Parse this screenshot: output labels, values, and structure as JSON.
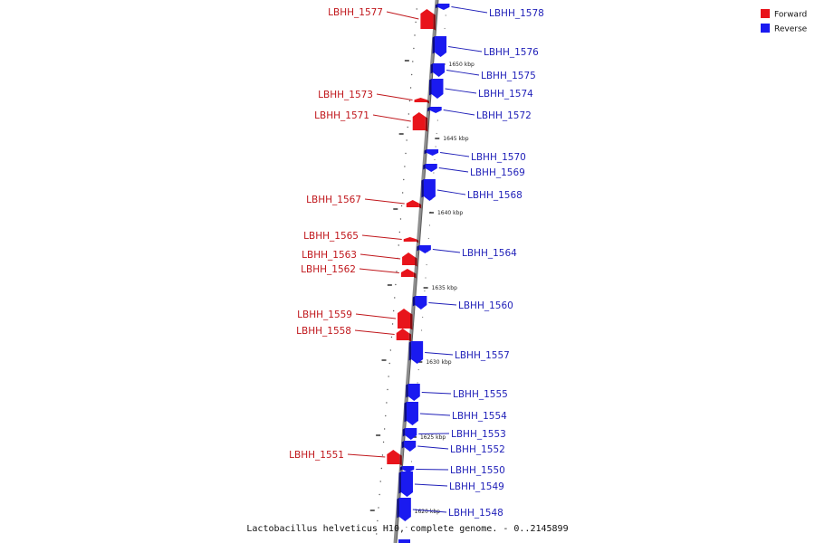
{
  "caption": "Lactobacillus helveticus H10, complete genome. - 0..2145899",
  "legend": [
    {
      "label": "Forward",
      "color": "#e8141b"
    },
    {
      "label": "Reverse",
      "color": "#1a1af0"
    }
  ],
  "colors": {
    "forward_label": "#c0171c",
    "reverse_label": "#1f1fb8",
    "backbone": "#8e8e8e"
  },
  "ticks": [
    {
      "label": "1650 kbp"
    },
    {
      "label": "1645 kbp"
    },
    {
      "label": "1640 kbp"
    },
    {
      "label": "1635 kbp"
    },
    {
      "label": "1630 kbp"
    },
    {
      "label": "1625 kbp"
    },
    {
      "label": "1620 kbp"
    }
  ],
  "genes": [
    {
      "label": "LBHH_1578",
      "strand": "reverse"
    },
    {
      "label": "LBHH_1577",
      "strand": "forward"
    },
    {
      "label": "LBHH_1576",
      "strand": "reverse"
    },
    {
      "label": "LBHH_1575",
      "strand": "reverse"
    },
    {
      "label": "LBHH_1574",
      "strand": "reverse"
    },
    {
      "label": "LBHH_1573",
      "strand": "forward"
    },
    {
      "label": "LBHH_1572",
      "strand": "reverse"
    },
    {
      "label": "LBHH_1571",
      "strand": "forward"
    },
    {
      "label": "LBHH_1570",
      "strand": "reverse"
    },
    {
      "label": "LBHH_1569",
      "strand": "reverse"
    },
    {
      "label": "LBHH_1568",
      "strand": "reverse"
    },
    {
      "label": "LBHH_1567",
      "strand": "forward"
    },
    {
      "label": "LBHH_1565",
      "strand": "forward"
    },
    {
      "label": "LBHH_1564",
      "strand": "reverse"
    },
    {
      "label": "LBHH_1563",
      "strand": "forward"
    },
    {
      "label": "LBHH_1562",
      "strand": "forward"
    },
    {
      "label": "LBHH_1560",
      "strand": "reverse"
    },
    {
      "label": "LBHH_1559",
      "strand": "forward"
    },
    {
      "label": "LBHH_1558",
      "strand": "forward"
    },
    {
      "label": "LBHH_1557",
      "strand": "reverse"
    },
    {
      "label": "LBHH_1555",
      "strand": "reverse"
    },
    {
      "label": "LBHH_1554",
      "strand": "reverse"
    },
    {
      "label": "LBHH_1553",
      "strand": "reverse"
    },
    {
      "label": "LBHH_1552",
      "strand": "reverse"
    },
    {
      "label": "LBHH_1551",
      "strand": "forward"
    },
    {
      "label": "LBHH_1550",
      "strand": "reverse"
    },
    {
      "label": "LBHH_1549",
      "strand": "reverse"
    },
    {
      "label": "LBHH_1548",
      "strand": "reverse"
    }
  ]
}
